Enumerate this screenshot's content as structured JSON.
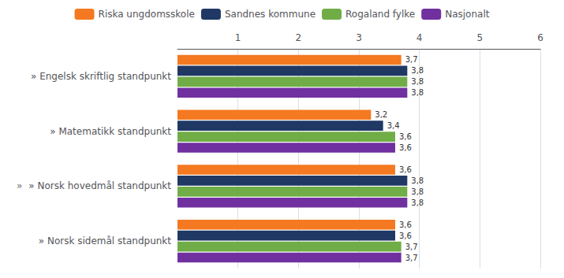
{
  "chart_data": {
    "type": "bar",
    "orientation": "horizontal",
    "categories": [
      "» Engelsk skriftlig standpunkt",
      "» Matematikk standpunkt",
      "» Norsk hovedmål standpunkt",
      "» Norsk sidemål standpunkt"
    ],
    "series": [
      {
        "name": "Riska ungdomsskole",
        "color": "#F47920",
        "values": [
          3.7,
          3.2,
          3.6,
          3.6
        ],
        "value_labels": [
          "3,7",
          "3,2",
          "3,6",
          "3,6"
        ]
      },
      {
        "name": "Sandnes kommune",
        "color": "#1F3864",
        "values": [
          3.8,
          3.4,
          3.8,
          3.6
        ],
        "value_labels": [
          "3,8",
          "3,4",
          "3,8",
          "3,6"
        ]
      },
      {
        "name": "Rogaland fylke",
        "color": "#70AD47",
        "values": [
          3.8,
          3.6,
          3.8,
          3.7
        ],
        "value_labels": [
          "3,8",
          "3,6",
          "3,8",
          "3,7"
        ]
      },
      {
        "name": "Nasjonalt",
        "color": "#7030A0",
        "values": [
          3.8,
          3.6,
          3.8,
          3.7
        ],
        "value_labels": [
          "3,8",
          "3,6",
          "3,8",
          "3,7"
        ]
      }
    ],
    "xlim": [
      0,
      6
    ],
    "xticks": [
      1,
      2,
      3,
      4,
      5,
      6
    ],
    "grid": true,
    "legend": "top",
    "data_labels": true,
    "annotations": [
      {
        "text": "»",
        "category": "» Norsk hovedmål standpunkt"
      }
    ]
  }
}
